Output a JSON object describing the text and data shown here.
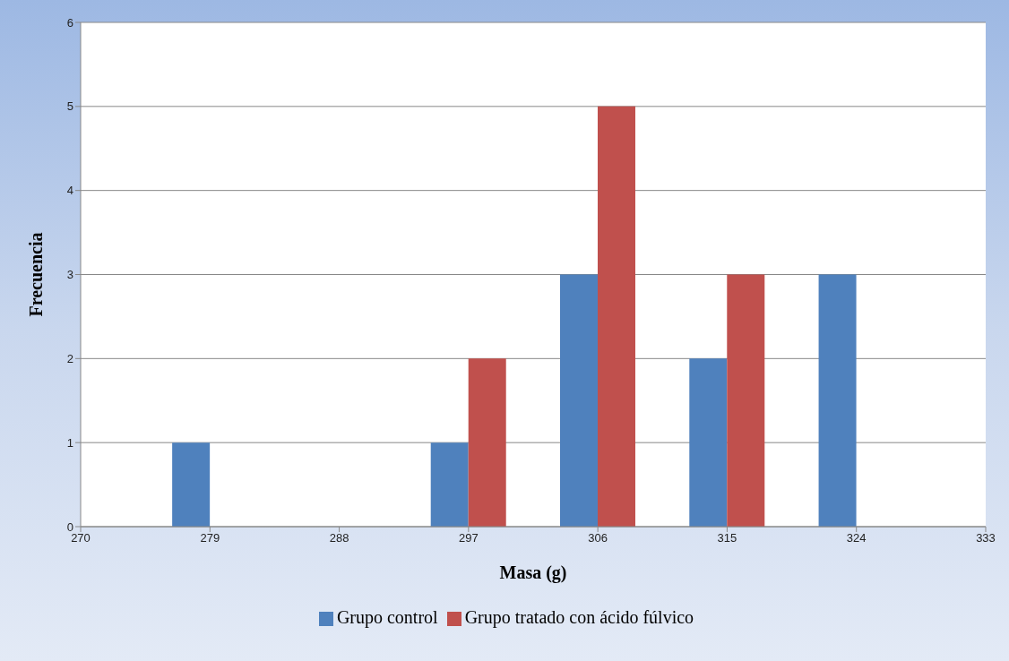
{
  "chart_data": {
    "type": "bar",
    "xlabel": "Masa (g)",
    "ylabel": "Frecuencia",
    "x": [
      279,
      288,
      297,
      306,
      315,
      324
    ],
    "series": [
      {
        "name": "Grupo control",
        "color": "#4f81bd",
        "values": [
          1,
          0,
          1,
          3,
          2,
          3
        ]
      },
      {
        "name": "Grupo tratado con ácido fúlvico",
        "color": "#c0504d",
        "values": [
          0,
          0,
          2,
          5,
          3,
          0
        ]
      }
    ],
    "xlim": [
      270,
      333
    ],
    "xticks": [
      270,
      279,
      288,
      297,
      306,
      315,
      324,
      333
    ],
    "ylim": [
      0,
      6
    ],
    "yticks": [
      0,
      1,
      2,
      3,
      4,
      5,
      6
    ],
    "grid": "y",
    "legend": "bottom"
  }
}
